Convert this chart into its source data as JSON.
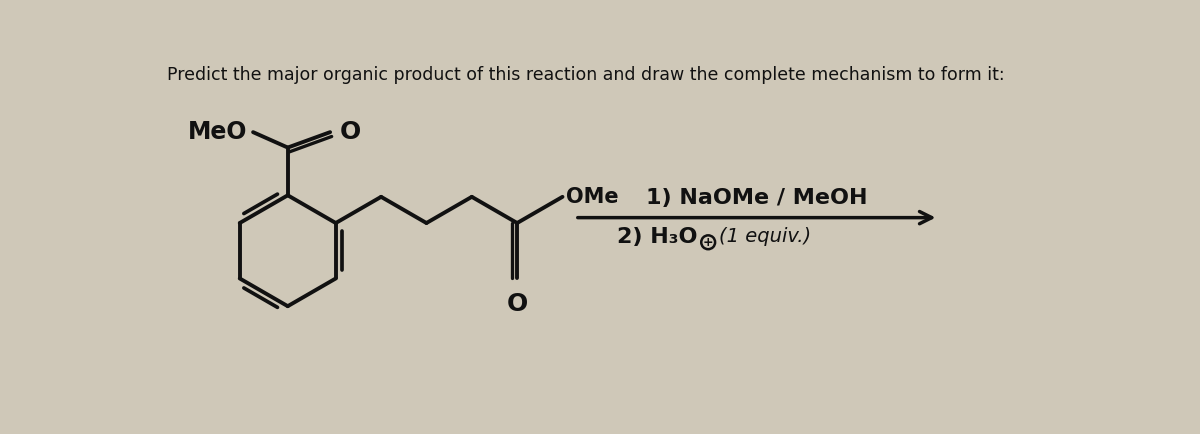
{
  "title": "Predict the major organic product of this reaction and draw the complete mechanism to form it:",
  "title_fontsize": 12.5,
  "background_color": "#cfc8b8",
  "text_color": "#111111",
  "reagent_line1": "1) NaOMe / MeOH",
  "reagent_line2": "2) H₃O",
  "reagent_line2_plus": "+",
  "reagent_line2_suffix": "(1 equiv.)",
  "figsize": [
    12.0,
    4.34
  ],
  "dpi": 100
}
